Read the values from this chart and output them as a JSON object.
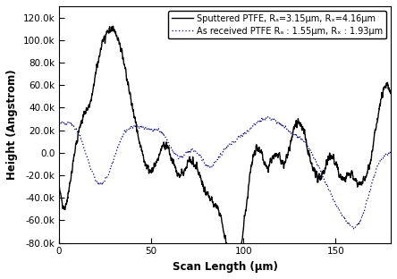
{
  "title": "",
  "xlabel": "Scan Length (μm)",
  "ylabel": "Height (Angstrom)",
  "xlim": [
    0,
    180
  ],
  "ylim": [
    -80000,
    130000
  ],
  "yticks": [
    -80000,
    -60000,
    -40000,
    -20000,
    0,
    20000,
    40000,
    60000,
    80000,
    100000,
    120000
  ],
  "xticks": [
    0,
    50,
    100,
    150
  ],
  "legend1": "Sputtered PTFE, Rₐ=3.15μm, Rₓ=4.16μm",
  "legend2": "As received PTFE Rₐ : 1.55μm, Rₓ : 1.93μm",
  "line1_color": "#000000",
  "line2_color": "#00008B",
  "background_color": "#ffffff"
}
